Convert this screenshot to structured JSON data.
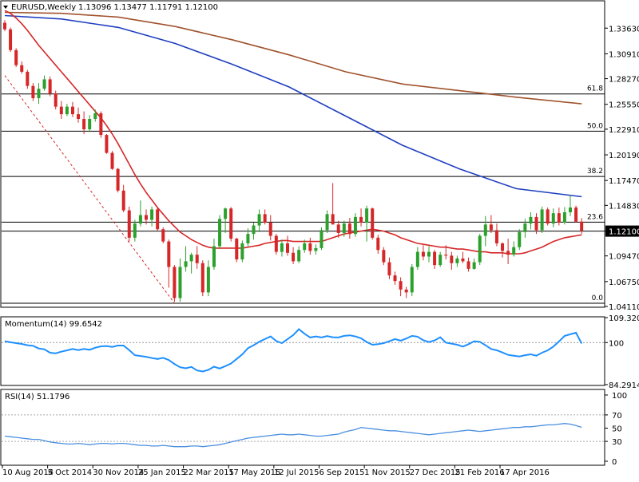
{
  "header": {
    "symbol_label": "EURUSD,Weekly",
    "ohlc": "1.13096 1.13477 1.11791 1.12100"
  },
  "colors": {
    "bull": "#2ca02c",
    "bear": "#d62728",
    "sma20": "#d62728",
    "sma100": "#1f3fbf",
    "sma200": "#a0522d",
    "fib": "#000000",
    "trend": "#d62728",
    "momentum": "#1e90ff",
    "rsi": "#4a8fe0",
    "grid": "#cccccc",
    "price_tag_bg": "#000000",
    "price_tag_fg": "#ffffff"
  },
  "chart_data": [
    {
      "type": "candlestick",
      "title": "EURUSD,Weekly",
      "subtitle": "1.13096 1.13477 1.11791 1.12100",
      "ylim": [
        1.0411,
        1.3636
      ],
      "y_ticks": [
        "1.33630",
        "1.30910",
        "1.28270",
        "1.25550",
        "1.22910",
        "1.20190",
        "1.17470",
        "1.14830",
        "1.12100",
        "1.09470",
        "1.06750",
        "1.04110"
      ],
      "last_price": "1.12100",
      "x_tick_labels": [
        "10 Aug 2014",
        "5 Oct 2014",
        "30 Nov 2014",
        "25 Jan 2015",
        "22 Mar 2015",
        "17 May 2015",
        "12 Jul 2015",
        "6 Sep 2015",
        "1 Nov 2015",
        "27 Dec 2015",
        "21 Feb 2016",
        "17 Apr 2016"
      ],
      "fibonacci_levels": [
        {
          "label": "61.8",
          "price": 1.2665
        },
        {
          "label": "50.0",
          "price": 1.227
        },
        {
          "label": "38.2",
          "price": 1.179
        },
        {
          "label": "23.6",
          "price": 1.1305
        },
        {
          "label": "0.0",
          "price": 1.0445
        }
      ],
      "candles": [
        [
          1.342,
          1.3448,
          1.333,
          1.335
        ],
        [
          1.335,
          1.337,
          1.311,
          1.313
        ],
        [
          1.313,
          1.315,
          1.295,
          1.297
        ],
        [
          1.297,
          1.301,
          1.288,
          1.29
        ],
        [
          1.29,
          1.292,
          1.272,
          1.275
        ],
        [
          1.275,
          1.278,
          1.259,
          1.262
        ],
        [
          1.262,
          1.278,
          1.256,
          1.272
        ],
        [
          1.272,
          1.286,
          1.27,
          1.282
        ],
        [
          1.282,
          1.285,
          1.264,
          1.267
        ],
        [
          1.267,
          1.27,
          1.25,
          1.253
        ],
        [
          1.253,
          1.259,
          1.24,
          1.245
        ],
        [
          1.245,
          1.256,
          1.243,
          1.253
        ],
        [
          1.253,
          1.258,
          1.242,
          1.245
        ],
        [
          1.245,
          1.252,
          1.236,
          1.24
        ],
        [
          1.24,
          1.248,
          1.224,
          1.229
        ],
        [
          1.229,
          1.244,
          1.226,
          1.24
        ],
        [
          1.24,
          1.25,
          1.237,
          1.246
        ],
        [
          1.246,
          1.248,
          1.22,
          1.223
        ],
        [
          1.223,
          1.224,
          1.203,
          1.204
        ],
        [
          1.204,
          1.206,
          1.186,
          1.187
        ],
        [
          1.187,
          1.188,
          1.162,
          1.164
        ],
        [
          1.164,
          1.17,
          1.141,
          1.143
        ],
        [
          1.143,
          1.147,
          1.11,
          1.114
        ],
        [
          1.114,
          1.133,
          1.11,
          1.129
        ],
        [
          1.129,
          1.1535,
          1.126,
          1.138
        ],
        [
          1.138,
          1.144,
          1.128,
          1.133
        ],
        [
          1.133,
          1.147,
          1.126,
          1.144
        ],
        [
          1.144,
          1.146,
          1.121,
          1.123
        ],
        [
          1.123,
          1.125,
          1.108,
          1.11
        ],
        [
          1.11,
          1.112,
          1.061,
          1.083
        ],
        [
          1.083,
          1.085,
          1.046,
          1.05
        ],
        [
          1.05,
          1.092,
          1.046,
          1.083
        ],
        [
          1.083,
          1.105,
          1.078,
          1.089
        ],
        [
          1.089,
          1.098,
          1.076,
          1.096
        ],
        [
          1.096,
          1.105,
          1.081,
          1.087
        ],
        [
          1.087,
          1.09,
          1.052,
          1.056
        ],
        [
          1.056,
          1.09,
          1.052,
          1.083
        ],
        [
          1.083,
          1.113,
          1.08,
          1.105
        ],
        [
          1.105,
          1.138,
          1.102,
          1.134
        ],
        [
          1.134,
          1.146,
          1.119,
          1.145
        ],
        [
          1.145,
          1.1465,
          1.11,
          1.113
        ],
        [
          1.113,
          1.114,
          1.088,
          1.091
        ],
        [
          1.091,
          1.111,
          1.088,
          1.108
        ],
        [
          1.108,
          1.124,
          1.105,
          1.118
        ],
        [
          1.118,
          1.13,
          1.112,
          1.127
        ],
        [
          1.127,
          1.144,
          1.12,
          1.139
        ],
        [
          1.139,
          1.144,
          1.128,
          1.13
        ],
        [
          1.13,
          1.138,
          1.111,
          1.116
        ],
        [
          1.116,
          1.118,
          1.096,
          1.099
        ],
        [
          1.099,
          1.112,
          1.094,
          1.108
        ],
        [
          1.108,
          1.116,
          1.095,
          1.098
        ],
        [
          1.098,
          1.104,
          1.086,
          1.089
        ],
        [
          1.089,
          1.105,
          1.087,
          1.101
        ],
        [
          1.101,
          1.112,
          1.098,
          1.108
        ],
        [
          1.108,
          1.114,
          1.096,
          1.1
        ],
        [
          1.1,
          1.107,
          1.096,
          1.103
        ],
        [
          1.103,
          1.125,
          1.101,
          1.122
        ],
        [
          1.122,
          1.143,
          1.119,
          1.139
        ],
        [
          1.139,
          1.172,
          1.129,
          1.128
        ],
        [
          1.128,
          1.132,
          1.114,
          1.119
        ],
        [
          1.119,
          1.132,
          1.115,
          1.129
        ],
        [
          1.129,
          1.135,
          1.113,
          1.118
        ],
        [
          1.118,
          1.14,
          1.115,
          1.136
        ],
        [
          1.136,
          1.145,
          1.126,
          1.13
        ],
        [
          1.13,
          1.148,
          1.11,
          1.145
        ],
        [
          1.145,
          1.146,
          1.112,
          1.114
        ],
        [
          1.114,
          1.117,
          1.097,
          1.101
        ],
        [
          1.101,
          1.104,
          1.085,
          1.088
        ],
        [
          1.088,
          1.093,
          1.07,
          1.074
        ],
        [
          1.074,
          1.078,
          1.064,
          1.068
        ],
        [
          1.068,
          1.072,
          1.052,
          1.059
        ],
        [
          1.059,
          1.062,
          1.05,
          1.056
        ],
        [
          1.056,
          1.086,
          1.052,
          1.083
        ],
        [
          1.083,
          1.104,
          1.08,
          1.099
        ],
        [
          1.099,
          1.106,
          1.09,
          1.094
        ],
        [
          1.094,
          1.105,
          1.088,
          1.099
        ],
        [
          1.099,
          1.101,
          1.081,
          1.085
        ],
        [
          1.085,
          1.099,
          1.083,
          1.096
        ],
        [
          1.096,
          1.106,
          1.091,
          1.095
        ],
        [
          1.095,
          1.099,
          1.08,
          1.087
        ],
        [
          1.087,
          1.095,
          1.083,
          1.092
        ],
        [
          1.092,
          1.099,
          1.087,
          1.089
        ],
        [
          1.089,
          1.093,
          1.078,
          1.081
        ],
        [
          1.081,
          1.092,
          1.08,
          1.088
        ],
        [
          1.088,
          1.118,
          1.085,
          1.116
        ],
        [
          1.116,
          1.137,
          1.105,
          1.128
        ],
        [
          1.128,
          1.138,
          1.119,
          1.122
        ],
        [
          1.122,
          1.129,
          1.105,
          1.108
        ],
        [
          1.108,
          1.109,
          1.093,
          1.1
        ],
        [
          1.1,
          1.113,
          1.086,
          1.096
        ],
        [
          1.096,
          1.11,
          1.094,
          1.104
        ],
        [
          1.104,
          1.123,
          1.101,
          1.12
        ],
        [
          1.12,
          1.134,
          1.114,
          1.129
        ],
        [
          1.129,
          1.141,
          1.123,
          1.136
        ],
        [
          1.136,
          1.14,
          1.118,
          1.122
        ],
        [
          1.122,
          1.147,
          1.119,
          1.144
        ],
        [
          1.144,
          1.146,
          1.127,
          1.129
        ],
        [
          1.129,
          1.145,
          1.125,
          1.14
        ],
        [
          1.14,
          1.146,
          1.127,
          1.13
        ],
        [
          1.13,
          1.1465,
          1.128,
          1.141
        ],
        [
          1.141,
          1.159,
          1.137,
          1.146
        ],
        [
          1.146,
          1.148,
          1.13,
          1.131
        ],
        [
          1.131,
          1.1348,
          1.1179,
          1.121
        ]
      ],
      "sma20": [
        1.355,
        1.352,
        1.347,
        1.341,
        1.334,
        1.326,
        1.318,
        1.311,
        1.304,
        1.297,
        1.29,
        1.283,
        1.276,
        1.269,
        1.262,
        1.255,
        1.248,
        1.241,
        1.233,
        1.224,
        1.214,
        1.203,
        1.192,
        1.181,
        1.171,
        1.162,
        1.154,
        1.146,
        1.139,
        1.132,
        1.126,
        1.12,
        1.116,
        1.112,
        1.109,
        1.106,
        1.104,
        1.103,
        1.103,
        1.103,
        1.103,
        1.103,
        1.103,
        1.104,
        1.105,
        1.106,
        1.108,
        1.109,
        1.11,
        1.111,
        1.111,
        1.11,
        1.11,
        1.11,
        1.11,
        1.11,
        1.11,
        1.112,
        1.114,
        1.116,
        1.118,
        1.119,
        1.12,
        1.121,
        1.122,
        1.123,
        1.122,
        1.121,
        1.119,
        1.117,
        1.114,
        1.112,
        1.11,
        1.108,
        1.107,
        1.106,
        1.105,
        1.104,
        1.104,
        1.103,
        1.102,
        1.102,
        1.101,
        1.1,
        1.099,
        1.099,
        1.098,
        1.098,
        1.098,
        1.097,
        1.097,
        1.097,
        1.098,
        1.1,
        1.102,
        1.104,
        1.107,
        1.11,
        1.112,
        1.114,
        1.115,
        1.116,
        1.117
      ],
      "sma100": [
        [
          0,
          1.3496
        ],
        [
          20,
          1.346
        ],
        [
          40,
          1.337
        ],
        [
          60,
          1.32
        ],
        [
          80,
          1.298
        ],
        [
          100,
          1.274
        ],
        [
          120,
          1.243
        ],
        [
          140,
          1.212
        ],
        [
          160,
          1.187
        ],
        [
          180,
          1.166
        ],
        [
          203,
          1.1575
        ]
      ],
      "sma200": [
        [
          0,
          1.353
        ],
        [
          20,
          1.352
        ],
        [
          40,
          1.348
        ],
        [
          60,
          1.338
        ],
        [
          80,
          1.324
        ],
        [
          100,
          1.308
        ],
        [
          120,
          1.29
        ],
        [
          140,
          1.277
        ],
        [
          160,
          1.27
        ],
        [
          180,
          1.263
        ],
        [
          203,
          1.256
        ]
      ],
      "trendline": [
        [
          0,
          1.286
        ],
        [
          30,
          1.0445
        ]
      ]
    },
    {
      "type": "line",
      "title": "Momentum(14) 99.6542",
      "ylim": [
        84.2914,
        109.3208
      ],
      "y_ticks": [
        "109.3208",
        "100",
        "84.2914"
      ],
      "reference_line": 100,
      "values": [
        100.5,
        100.1,
        99.8,
        99.5,
        99.0,
        98.8,
        97.8,
        97.5,
        96.2,
        96.0,
        96.6,
        97.1,
        97.6,
        97.2,
        97.6,
        97.3,
        98.1,
        98.6,
        98.7,
        98.4,
        98.9,
        98.9,
        97.2,
        95.3,
        95.0,
        94.7,
        94.2,
        93.9,
        94.3,
        93.5,
        92.0,
        90.8,
        90.4,
        90.9,
        89.6,
        89.2,
        89.8,
        91.0,
        90.3,
        91.2,
        92.2,
        93.9,
        95.6,
        97.9,
        99.0,
        100.3,
        101.3,
        102.3,
        100.6,
        99.8,
        101.3,
        102.8,
        105.0,
        103.3,
        101.9,
        102.3,
        101.9,
        102.4,
        102.0,
        101.9,
        102.5,
        102.7,
        102.3,
        101.6,
        100.2,
        99.2,
        99.4,
        99.8,
        100.5,
        101.3,
        100.7,
        101.5,
        102.5,
        102.2,
        100.9,
        100.2,
        100.8,
        102.0,
        100.0,
        99.6,
        99.2,
        98.5,
        99.4,
        100.5,
        100.3,
        99.0,
        97.6,
        97.1,
        96.3,
        95.4,
        95.1,
        94.8,
        95.3,
        95.6,
        95.1,
        96.2,
        97.1,
        98.5,
        100.4,
        102.5,
        103.1,
        103.7,
        99.65
      ]
    },
    {
      "type": "line",
      "title": "RSI(14) 51.1796",
      "ylim": [
        0,
        100
      ],
      "y_ticks": [
        "100",
        "70",
        "50",
        "30",
        "0"
      ],
      "reference_lines": [
        70,
        30
      ],
      "values": [
        38,
        37,
        36,
        35,
        34,
        33,
        33,
        31,
        29,
        28,
        27,
        26,
        26,
        27,
        26,
        25,
        26,
        27,
        27,
        26,
        27,
        27,
        26,
        25,
        24,
        24,
        23,
        23,
        24,
        23,
        22,
        22,
        22,
        23,
        23,
        22,
        23,
        24,
        25,
        27,
        29,
        31,
        33,
        35,
        36,
        37,
        38,
        39,
        40,
        41,
        40,
        40,
        41,
        40,
        39,
        38,
        38,
        39,
        40,
        41,
        44,
        46,
        48,
        51,
        50,
        49,
        48,
        47,
        46,
        46,
        45,
        44,
        43,
        42,
        41,
        40,
        41,
        42,
        43,
        44,
        45,
        46,
        47,
        46,
        45,
        46,
        47,
        48,
        49,
        50,
        51,
        51,
        52,
        52,
        53,
        54,
        55,
        55,
        56,
        57,
        56,
        54,
        51.18
      ]
    }
  ]
}
